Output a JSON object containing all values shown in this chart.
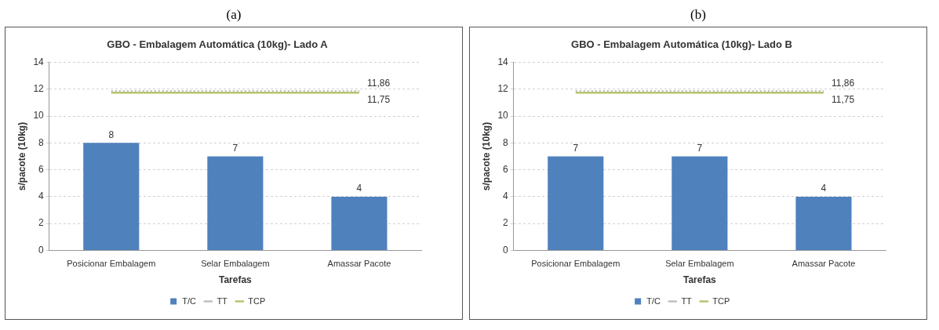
{
  "chart_data": [
    {
      "type": "bar",
      "title": "GBO - Embalagem Automática (10kg)- Lado A",
      "annotations": [
        "(a)"
      ],
      "xlabel": "Tarefas",
      "ylabel": "s/pacote (10kg)",
      "categories": [
        "Posicionar Embalagem",
        "Selar Embalagem",
        "Amassar Pacote"
      ],
      "series": [
        {
          "name": "T/C",
          "color": "#4f81bd",
          "values": [
            8,
            7,
            4
          ],
          "value_labels": [
            "8",
            "7",
            "4"
          ]
        },
        {
          "name": "TT",
          "type": "line",
          "color": "#bfbfbf",
          "line_style": "dotted",
          "values": [
            11.86,
            11.86,
            11.86
          ],
          "value_labels": [
            null,
            null,
            "11,86"
          ]
        },
        {
          "name": "TCP",
          "type": "line",
          "color": "#b7c36a",
          "line_style": "solid",
          "values": [
            11.75,
            11.75,
            11.75
          ],
          "value_labels": [
            null,
            null,
            "11,75"
          ]
        }
      ],
      "ylim": [
        0,
        14
      ],
      "yticks": [
        0,
        2,
        4,
        6,
        8,
        10,
        12,
        14
      ],
      "grid": "y",
      "legend": "bottom",
      "marker": "none"
    },
    {
      "type": "bar",
      "title": "GBO - Embalagem Automática (10kg)- Lado B",
      "annotations": [
        "(b)"
      ],
      "xlabel": "Tarefas",
      "ylabel": "s/pacote (10kg)",
      "categories": [
        "Posicionar Embalagem",
        "Selar Embalagem",
        "Amassar Pacote"
      ],
      "series": [
        {
          "name": "T/C",
          "color": "#4f81bd",
          "values": [
            7,
            7,
            4
          ],
          "value_labels": [
            "7",
            "7",
            "4"
          ]
        },
        {
          "name": "TT",
          "type": "line",
          "color": "#bfbfbf",
          "line_style": "dotted",
          "values": [
            11.86,
            11.86,
            11.86
          ],
          "value_labels": [
            null,
            null,
            "11,86"
          ]
        },
        {
          "name": "TCP",
          "type": "line",
          "color": "#b7c36a",
          "line_style": "solid",
          "values": [
            11.75,
            11.75,
            11.75
          ],
          "value_labels": [
            null,
            null,
            "11,75"
          ]
        }
      ],
      "ylim": [
        0,
        14
      ],
      "yticks": [
        0,
        2,
        4,
        6,
        8,
        10,
        12,
        14
      ],
      "grid": "y",
      "legend": "bottom",
      "marker": "none"
    }
  ]
}
